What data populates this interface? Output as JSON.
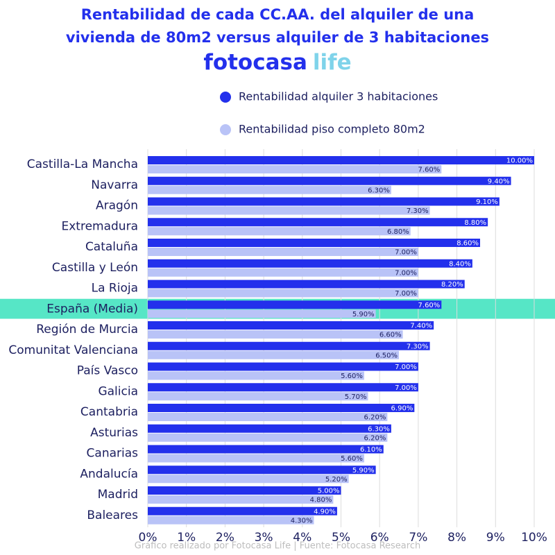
{
  "chart_data": {
    "type": "bar",
    "orientation": "horizontal",
    "title": [
      "Rentabilidad de cada CC.AA. del alquiler de una",
      "vivienda de 80m2 versus alquiler de 3 habitaciones"
    ],
    "logo": [
      "fotocasa",
      "life"
    ],
    "source": "Gráfico realizado por Fotocasa Life | Fuente: Fotocasa Research",
    "categories": [
      "Castilla-La Mancha",
      "Navarra",
      "Aragón",
      "Extremadura",
      "Cataluña",
      "Castilla y León",
      "La Rioja",
      "España (Media)",
      "Región de Murcia",
      "Comunitat Valenciana",
      "País Vasco",
      "Galicia",
      "Cantabria",
      "Asturias",
      "Canarias",
      "Andalucía",
      "Madrid",
      "Baleares"
    ],
    "highlight_index": 7,
    "highlight_color": "#56e6c6",
    "series": [
      {
        "name": "Rentabilidad alquiler 3 habitaciones",
        "color": "#2330ec",
        "values": [
          10.0,
          9.4,
          9.1,
          8.8,
          8.6,
          8.4,
          8.2,
          7.6,
          7.4,
          7.3,
          7.0,
          7.0,
          6.9,
          6.3,
          6.1,
          5.9,
          5.0,
          4.9
        ],
        "value_labels": [
          "10.00%",
          "9.40%",
          "9.10%",
          "8.80%",
          "8.60%",
          "8.40%",
          "8.20%",
          "7.60%",
          "7.40%",
          "7.30%",
          "7.00%",
          "7.00%",
          "6.90%",
          "6.30%",
          "6.10%",
          "5.90%",
          "5.00%",
          "4.90%"
        ]
      },
      {
        "name": "Rentabilidad piso completo 80m2",
        "color": "#b9c3f7",
        "values": [
          7.6,
          6.3,
          7.3,
          6.8,
          7.0,
          7.0,
          7.0,
          5.9,
          6.6,
          6.5,
          5.6,
          5.7,
          6.2,
          6.2,
          5.6,
          5.2,
          4.8,
          4.3
        ],
        "value_labels": [
          "7.60%",
          "6.30%",
          "7.30%",
          "6.80%",
          "7.00%",
          "7.00%",
          "7.00%",
          "5.90%",
          "6.60%",
          "6.50%",
          "5.60%",
          "5.70%",
          "6.20%",
          "6.20%",
          "5.60%",
          "5.20%",
          "4.80%",
          "4.30%"
        ]
      }
    ],
    "xlim": [
      0,
      10
    ],
    "xticks": [
      {
        "value": 0,
        "label": "0%"
      },
      {
        "value": 1,
        "label": "1%"
      },
      {
        "value": 2,
        "label": "2%"
      },
      {
        "value": 3,
        "label": "3%"
      },
      {
        "value": 4,
        "label": "4%"
      },
      {
        "value": 5,
        "label": "5%"
      },
      {
        "value": 6,
        "label": "6%"
      },
      {
        "value": 7,
        "label": "7%"
      },
      {
        "value": 8,
        "label": "8%"
      },
      {
        "value": 9,
        "label": "9%"
      },
      {
        "value": 10,
        "label": "10%"
      }
    ],
    "grid": true
  }
}
